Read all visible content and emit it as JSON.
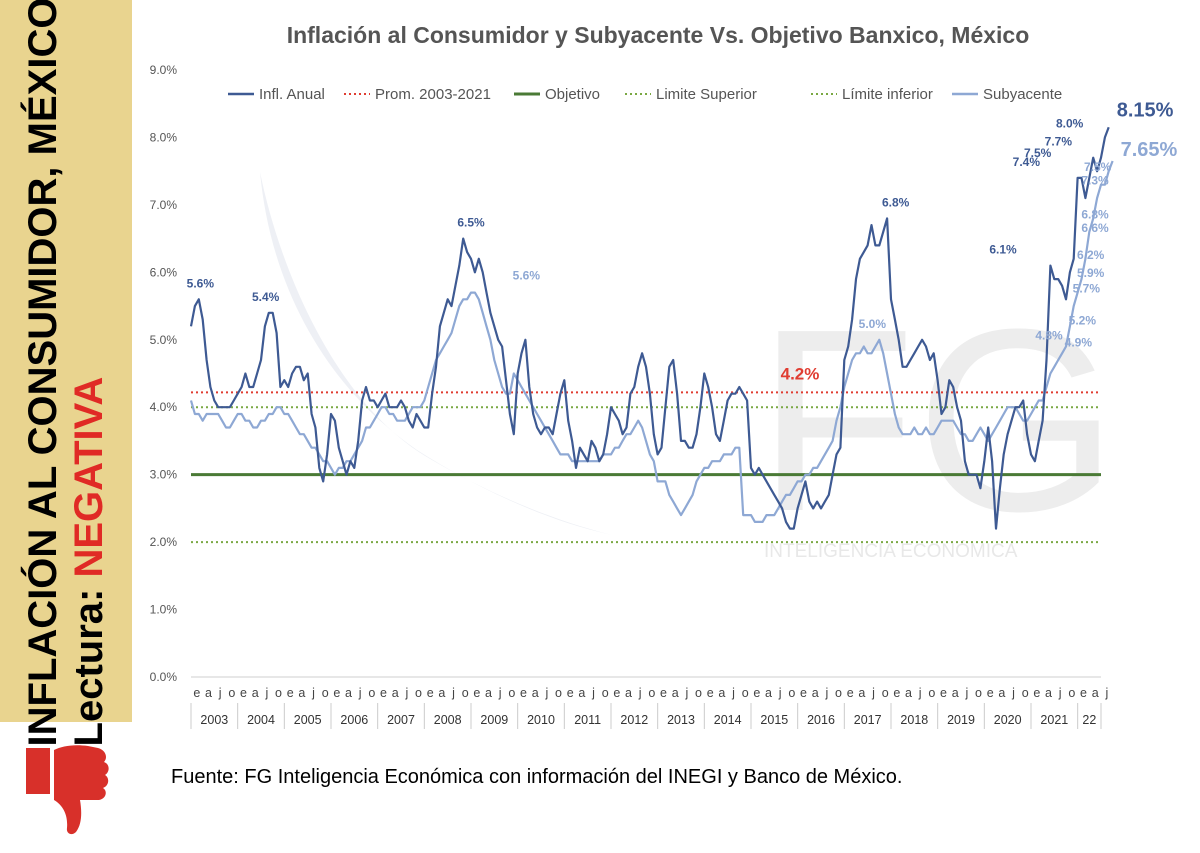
{
  "sidebar": {
    "line1": "INFLACIÓN AL CONSUMIDOR, MÉXICO",
    "line2_prefix": "Lectura: ",
    "line2_highlight": "NEGATIVA",
    "thumb_icon": "thumbs-down-icon",
    "bg_color": "#e9d48f",
    "highlight_color": "#e02a25"
  },
  "source": "Fuente: FG Inteligencia Económica con información del INEGI y Banco de México.",
  "watermark": {
    "logo_text": "FG",
    "caption": "INTELIGENCIA ECONÓMICA"
  },
  "chart_data": {
    "type": "line",
    "title": "Inflación al Consumidor y Subyacente Vs. Objetivo Banxico, México",
    "ylim": [
      0,
      9
    ],
    "yticks": [
      "0.0%",
      "1.0%",
      "2.0%",
      "3.0%",
      "4.0%",
      "5.0%",
      "6.0%",
      "7.0%",
      "8.0%",
      "9.0%"
    ],
    "month_letters": [
      "e",
      "a",
      "j",
      "o"
    ],
    "last_month_letters": [
      "e",
      "a",
      "j"
    ],
    "years": [
      "2003",
      "2004",
      "2005",
      "2006",
      "2007",
      "2008",
      "2009",
      "2010",
      "2011",
      "2012",
      "2013",
      "2014",
      "2015",
      "2016",
      "2017",
      "2018",
      "2019",
      "2020",
      "2021",
      "22"
    ],
    "grid": false,
    "legend_position": "top",
    "legend": [
      "Infl. Anual",
      "Prom. 2003-2021",
      "Objetivo",
      "Limite Superior",
      "Límite inferior",
      "Subyacente"
    ],
    "reference_lines": [
      {
        "name": "Prom. 2003-2021",
        "value": 4.22,
        "color": "#e03c31",
        "style": "dotted",
        "label": "4.2%"
      },
      {
        "name": "Objetivo",
        "value": 3.0,
        "color": "#4a7a35",
        "style": "solid"
      },
      {
        "name": "Limite Superior",
        "value": 4.0,
        "color": "#7aa843",
        "style": "dotted"
      },
      {
        "name": "Límite inferior",
        "value": 2.0,
        "color": "#7aa843",
        "style": "dotted"
      }
    ],
    "series": [
      {
        "name": "Infl. Anual",
        "color": "#3e5a93",
        "x_start": 2003.0,
        "step_years": 0.08333,
        "values": [
          5.2,
          5.5,
          5.6,
          5.3,
          4.7,
          4.3,
          4.1,
          4.0,
          4.0,
          4.0,
          4.0,
          4.1,
          4.2,
          4.3,
          4.5,
          4.3,
          4.3,
          4.5,
          4.7,
          5.2,
          5.4,
          5.4,
          5.1,
          4.3,
          4.4,
          4.3,
          4.5,
          4.6,
          4.6,
          4.4,
          4.5,
          3.9,
          3.7,
          3.1,
          2.9,
          3.3,
          3.9,
          3.8,
          3.4,
          3.2,
          3.0,
          3.2,
          3.1,
          3.5,
          4.1,
          4.3,
          4.1,
          4.1,
          4.0,
          4.1,
          4.2,
          4.0,
          4.0,
          4.0,
          4.1,
          4.0,
          3.8,
          3.7,
          3.9,
          3.8,
          3.7,
          3.7,
          4.2,
          4.6,
          5.2,
          5.4,
          5.6,
          5.5,
          5.8,
          6.1,
          6.5,
          6.3,
          6.2,
          6.0,
          6.2,
          6.0,
          5.7,
          5.4,
          5.2,
          5.0,
          4.9,
          4.4,
          3.9,
          3.6,
          4.5,
          4.8,
          5.0,
          4.3,
          3.9,
          3.7,
          3.6,
          3.7,
          3.7,
          3.6,
          3.9,
          4.2,
          4.4,
          3.8,
          3.5,
          3.1,
          3.4,
          3.3,
          3.2,
          3.5,
          3.4,
          3.2,
          3.3,
          3.6,
          4.0,
          3.9,
          3.8,
          3.6,
          3.7,
          4.2,
          4.3,
          4.6,
          4.8,
          4.6,
          4.2,
          3.6,
          3.3,
          3.4,
          4.0,
          4.6,
          4.7,
          4.2,
          3.5,
          3.5,
          3.4,
          3.4,
          3.6,
          4.0,
          4.5,
          4.3,
          4.0,
          3.6,
          3.5,
          3.8,
          4.1,
          4.2,
          4.2,
          4.3,
          4.2,
          4.1,
          3.1,
          3.0,
          3.1,
          3.0,
          2.9,
          2.8,
          2.7,
          2.6,
          2.5,
          2.3,
          2.2,
          2.2,
          2.5,
          2.7,
          2.9,
          2.6,
          2.5,
          2.6,
          2.5,
          2.6,
          2.7,
          3.0,
          3.3,
          3.4,
          4.7,
          4.9,
          5.3,
          5.9,
          6.2,
          6.3,
          6.4,
          6.7,
          6.4,
          6.4,
          6.6,
          6.8,
          5.6,
          5.3,
          5.0,
          4.6,
          4.6,
          4.7,
          4.8,
          4.9,
          5.0,
          4.9,
          4.7,
          4.8,
          4.4,
          3.9,
          4.0,
          4.4,
          4.3,
          4.0,
          3.8,
          3.2,
          3.0,
          3.0,
          3.0,
          2.8,
          3.2,
          3.7,
          3.2,
          2.2,
          2.8,
          3.3,
          3.6,
          3.8,
          4.0,
          4.0,
          4.1,
          3.6,
          3.3,
          3.2,
          3.5,
          3.8,
          4.7,
          6.1,
          5.9,
          5.9,
          5.8,
          5.6,
          6.0,
          6.2,
          7.4,
          7.4,
          7.1,
          7.4,
          7.7,
          7.5,
          7.7,
          8.0,
          8.15
        ]
      },
      {
        "name": "Subyacente",
        "color": "#8ea8d4",
        "x_start": 2003.0,
        "step_years": 0.08333,
        "values": [
          4.1,
          3.9,
          3.9,
          3.8,
          3.9,
          3.9,
          3.9,
          3.9,
          3.8,
          3.7,
          3.7,
          3.8,
          3.9,
          3.9,
          3.8,
          3.8,
          3.7,
          3.7,
          3.8,
          3.8,
          3.9,
          3.9,
          4.0,
          4.0,
          3.9,
          3.9,
          3.8,
          3.7,
          3.6,
          3.6,
          3.5,
          3.4,
          3.4,
          3.3,
          3.2,
          3.2,
          3.1,
          3.0,
          3.1,
          3.1,
          3.2,
          3.2,
          3.3,
          3.4,
          3.5,
          3.7,
          3.7,
          3.8,
          3.9,
          4.0,
          4.0,
          3.9,
          3.9,
          3.8,
          3.8,
          3.8,
          3.9,
          4.0,
          4.0,
          4.0,
          4.1,
          4.3,
          4.5,
          4.7,
          4.8,
          4.9,
          5.0,
          5.1,
          5.3,
          5.5,
          5.6,
          5.6,
          5.7,
          5.7,
          5.6,
          5.4,
          5.2,
          5.0,
          4.7,
          4.5,
          4.3,
          4.2,
          4.2,
          4.5,
          4.4,
          4.3,
          4.2,
          4.1,
          4.0,
          3.9,
          3.8,
          3.7,
          3.6,
          3.5,
          3.4,
          3.3,
          3.3,
          3.3,
          3.2,
          3.2,
          3.2,
          3.2,
          3.2,
          3.2,
          3.2,
          3.2,
          3.3,
          3.3,
          3.3,
          3.4,
          3.4,
          3.5,
          3.6,
          3.6,
          3.7,
          3.8,
          3.7,
          3.5,
          3.3,
          3.2,
          2.9,
          2.9,
          2.9,
          2.7,
          2.6,
          2.5,
          2.4,
          2.5,
          2.6,
          2.7,
          2.9,
          3.0,
          3.1,
          3.1,
          3.2,
          3.2,
          3.2,
          3.3,
          3.3,
          3.3,
          3.4,
          3.4,
          2.4,
          2.4,
          2.4,
          2.3,
          2.3,
          2.3,
          2.4,
          2.4,
          2.4,
          2.5,
          2.6,
          2.7,
          2.7,
          2.8,
          2.9,
          2.9,
          3.0,
          3.0,
          3.1,
          3.1,
          3.2,
          3.3,
          3.4,
          3.5,
          3.8,
          4.0,
          4.3,
          4.5,
          4.7,
          4.8,
          4.8,
          4.9,
          4.8,
          4.8,
          4.9,
          5.0,
          4.8,
          4.5,
          4.2,
          3.9,
          3.7,
          3.6,
          3.6,
          3.6,
          3.7,
          3.6,
          3.6,
          3.7,
          3.6,
          3.6,
          3.7,
          3.8,
          3.8,
          3.8,
          3.8,
          3.7,
          3.6,
          3.6,
          3.5,
          3.5,
          3.6,
          3.7,
          3.6,
          3.5,
          3.6,
          3.7,
          3.8,
          3.9,
          4.0,
          4.0,
          4.0,
          3.9,
          3.8,
          3.8,
          3.9,
          4.0,
          4.1,
          4.1,
          4.3,
          4.5,
          4.6,
          4.7,
          4.8,
          4.9,
          5.2,
          5.5,
          5.7,
          5.9,
          6.2,
          6.6,
          6.8,
          7.1,
          7.3,
          7.3,
          7.5,
          7.65
        ]
      }
    ],
    "annotations": [
      {
        "series": "Infl. Anual",
        "text": "5.6%",
        "x": 2003.2,
        "y": 5.6
      },
      {
        "series": "Infl. Anual",
        "text": "5.4%",
        "x": 2004.6,
        "y": 5.4
      },
      {
        "series": "Infl. Anual",
        "text": "6.5%",
        "x": 2009.0,
        "y": 6.5
      },
      {
        "series": "Subyacente",
        "text": "5.6%",
        "x": 2009.8,
        "y": 5.6
      },
      {
        "series": "Subyacente",
        "text": "5.0%",
        "x": 2017.6,
        "y": 5.0
      },
      {
        "series": "Infl. Anual",
        "text": "6.8%",
        "x": 2018.1,
        "y": 6.8
      },
      {
        "series": "Infl. Anual",
        "text": "6.1%",
        "x": 2020.4,
        "y": 6.1
      },
      {
        "series": "Infl. Anual",
        "text": "7.4%",
        "x": 2020.9,
        "y": 7.4
      },
      {
        "series": "Infl. Anual",
        "text": "7.5%",
        "x": 2021.4,
        "y": 7.5
      },
      {
        "series": "Infl. Anual",
        "text": "7.7%",
        "x": 2021.8,
        "y": 7.7
      },
      {
        "series": "Infl. Anual",
        "text": "8.0%",
        "x": 2022.0,
        "y": 8.0
      },
      {
        "series": "Subyacente",
        "text": "4.8%",
        "x": 2021.6,
        "y": 4.8
      },
      {
        "series": "Subyacente",
        "text": "4.9%",
        "x": 2021.8,
        "y": 4.9
      },
      {
        "series": "Subyacente",
        "text": "5.2%",
        "x": 2021.8,
        "y": 5.2
      },
      {
        "series": "Subyacente",
        "text": "5.7%",
        "x": 2021.8,
        "y": 5.7
      },
      {
        "series": "Subyacente",
        "text": "5.9%",
        "x": 2021.85,
        "y": 5.9
      },
      {
        "series": "Subyacente",
        "text": "6.2%",
        "x": 2021.85,
        "y": 6.2
      },
      {
        "series": "Subyacente",
        "text": "6.6%",
        "x": 2021.9,
        "y": 6.6
      },
      {
        "series": "Subyacente",
        "text": "6.8%",
        "x": 2021.9,
        "y": 6.8
      },
      {
        "series": "Subyacente",
        "text": "7.3%",
        "x": 2021.9,
        "y": 7.3
      },
      {
        "series": "Subyacente",
        "text": "7.5%",
        "x": 2022.0,
        "y": 7.5
      }
    ],
    "end_labels": [
      {
        "series": "Infl. Anual",
        "text": "8.15%"
      },
      {
        "series": "Subyacente",
        "text": "7.65%"
      }
    ]
  }
}
